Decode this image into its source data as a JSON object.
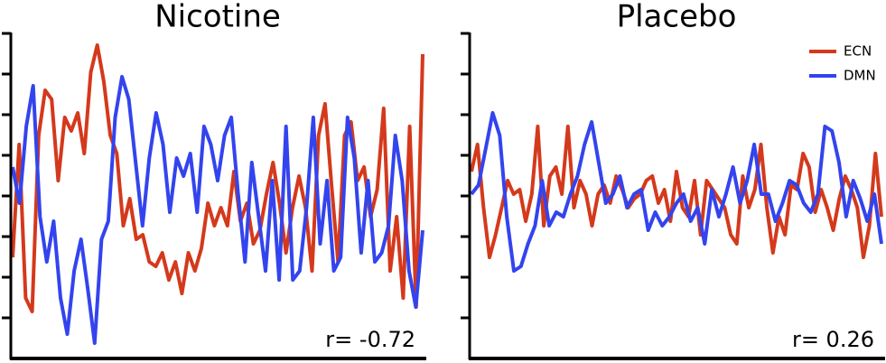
{
  "chart_data": [
    {
      "type": "line",
      "title": "Nicotine",
      "annotation": "r= -0.72",
      "ylim": [
        0,
        360
      ],
      "yticks": [
        45,
        90,
        135,
        180,
        225,
        270,
        315,
        360
      ],
      "series": [
        {
          "color": "#d4391c",
          "values": [
            112,
            237,
            67,
            52,
            247,
            297,
            287,
            197,
            267,
            252,
            272,
            227,
            317,
            347,
            307,
            247,
            227,
            147,
            177,
            132,
            137,
            107,
            102,
            117,
            87,
            107,
            72,
            117,
            97,
            122,
            172,
            147,
            167,
            147,
            207,
            152,
            172,
            127,
            142,
            182,
            217,
            172,
            117,
            167,
            202,
            167,
            97,
            247,
            282,
            192,
            107,
            247,
            262,
            197,
            212,
            157,
            187,
            277,
            97,
            157,
            67,
            257,
            57,
            337
          ]
        },
        {
          "color": "#3344ee",
          "values": [
            212,
            172,
            257,
            302,
            157,
            107,
            152,
            67,
            27,
            97,
            132,
            77,
            17,
            132,
            152,
            267,
            312,
            287,
            217,
            147,
            222,
            272,
            237,
            162,
            222,
            202,
            227,
            162,
            257,
            237,
            197,
            247,
            267,
            182,
            107,
            217,
            157,
            97,
            197,
            87,
            257,
            87,
            97,
            167,
            267,
            127,
            197,
            97,
            112,
            267,
            222,
            117,
            197,
            107,
            117,
            147,
            247,
            197,
            97,
            57,
            142
          ]
        }
      ]
    },
    {
      "type": "line",
      "title": "Placebo",
      "annotation": "r= 0.26",
      "legend": "upper right",
      "ylim": [
        0,
        360
      ],
      "yticks": [
        45,
        90,
        135,
        180,
        225,
        270,
        315,
        360
      ],
      "series": [
        {
          "name": "ECN",
          "color": "#d4391c",
          "values": [
            207,
            237,
            167,
            112,
            137,
            167,
            197,
            182,
            187,
            152,
            182,
            257,
            147,
            202,
            212,
            182,
            257,
            167,
            197,
            182,
            147,
            182,
            192,
            172,
            202,
            187,
            167,
            177,
            182,
            197,
            202,
            172,
            187,
            152,
            207,
            167,
            157,
            197,
            137,
            197,
            187,
            177,
            167,
            137,
            127,
            202,
            167,
            187,
            237,
            167,
            117,
            157,
            137,
            192,
            187,
            227,
            212,
            162,
            187,
            167,
            142,
            177,
            202,
            187,
            167,
            112,
            147,
            227,
            157
          ]
        },
        {
          "name": "DMN",
          "color": "#3344ee",
          "values": [
            182,
            192,
            232,
            272,
            247,
            157,
            97,
            102,
            127,
            147,
            197,
            147,
            162,
            157,
            182,
            202,
            237,
            262,
            217,
            172,
            182,
            202,
            167,
            182,
            187,
            142,
            162,
            147,
            157,
            172,
            182,
            152,
            167,
            127,
            187,
            157,
            182,
            212,
            172,
            197,
            237,
            182,
            182,
            152,
            172,
            197,
            192,
            172,
            162,
            182,
            257,
            252,
            217,
            157,
            197,
            177,
            152,
            182,
            127
          ]
        }
      ]
    }
  ]
}
